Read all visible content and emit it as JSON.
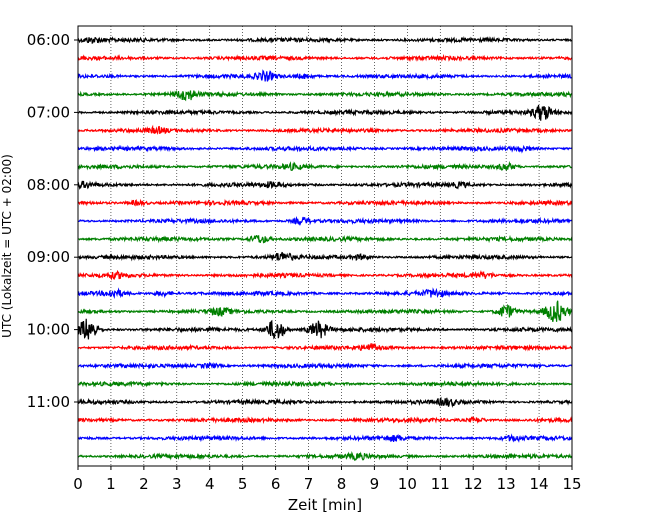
{
  "chart_data": {
    "type": "line",
    "title": "",
    "xlabel": "Zeit  [min]",
    "ylabel": "UTC (Lokalzeit = UTC + 02:00)",
    "xlim": [
      0,
      15
    ],
    "x_ticks": [
      0,
      1,
      2,
      3,
      4,
      5,
      6,
      7,
      8,
      9,
      10,
      11,
      12,
      13,
      14,
      15
    ],
    "y_tick_labels": [
      "06:00",
      "07:00",
      "08:00",
      "09:00",
      "10:00",
      "11:00"
    ],
    "y_tick_trace_index": [
      0,
      4,
      8,
      12,
      16,
      20
    ],
    "grid": "vertical dotted",
    "trace_colors": [
      "#000000",
      "#ff0000",
      "#0000ff",
      "#008000"
    ],
    "traces": [
      {
        "start": "06:00",
        "color": "#000000",
        "events": [
          [
            0.4,
            2
          ]
        ]
      },
      {
        "start": "06:15",
        "color": "#ff0000",
        "events": []
      },
      {
        "start": "06:30",
        "color": "#0000ff",
        "events": [
          [
            5.7,
            4
          ],
          [
            6.9,
            2
          ]
        ]
      },
      {
        "start": "06:45",
        "color": "#008000",
        "events": [
          [
            3.3,
            5
          ]
        ]
      },
      {
        "start": "07:00",
        "color": "#000000",
        "events": [
          [
            14.1,
            7
          ]
        ]
      },
      {
        "start": "07:15",
        "color": "#ff0000",
        "events": [
          [
            2.4,
            2
          ]
        ]
      },
      {
        "start": "07:30",
        "color": "#0000ff",
        "events": [
          [
            13.5,
            2
          ]
        ]
      },
      {
        "start": "07:45",
        "color": "#008000",
        "events": [
          [
            6.5,
            2
          ],
          [
            13.0,
            3
          ]
        ]
      },
      {
        "start": "08:00",
        "color": "#000000",
        "events": [
          [
            0.2,
            2
          ],
          [
            5.9,
            2
          ],
          [
            11.6,
            2
          ]
        ]
      },
      {
        "start": "08:15",
        "color": "#ff0000",
        "events": [
          [
            1.8,
            2
          ]
        ]
      },
      {
        "start": "08:30",
        "color": "#0000ff",
        "events": [
          [
            6.8,
            3
          ]
        ]
      },
      {
        "start": "08:45",
        "color": "#008000",
        "events": [
          [
            5.5,
            4
          ]
        ]
      },
      {
        "start": "09:00",
        "color": "#000000",
        "events": [
          [
            6.2,
            4
          ],
          [
            8.6,
            2
          ]
        ]
      },
      {
        "start": "09:15",
        "color": "#ff0000",
        "events": [
          [
            1.2,
            2
          ],
          [
            12.3,
            2
          ]
        ]
      },
      {
        "start": "09:30",
        "color": "#0000ff",
        "events": [
          [
            1.1,
            3
          ],
          [
            2.6,
            2
          ],
          [
            10.8,
            3
          ]
        ]
      },
      {
        "start": "09:45",
        "color": "#008000",
        "events": [
          [
            4.3,
            3
          ],
          [
            13.0,
            6
          ],
          [
            14.5,
            10
          ]
        ]
      },
      {
        "start": "10:00",
        "color": "#000000",
        "events": [
          [
            0.3,
            11
          ],
          [
            6.0,
            10
          ],
          [
            7.3,
            8
          ]
        ]
      },
      {
        "start": "10:15",
        "color": "#ff0000",
        "events": [
          [
            8.9,
            3
          ]
        ]
      },
      {
        "start": "10:30",
        "color": "#0000ff",
        "events": [
          [
            4.0,
            2
          ]
        ]
      },
      {
        "start": "10:45",
        "color": "#008000",
        "events": []
      },
      {
        "start": "11:00",
        "color": "#000000",
        "events": [
          [
            11.2,
            3
          ]
        ]
      },
      {
        "start": "11:15",
        "color": "#ff0000",
        "events": [
          [
            12.1,
            2
          ]
        ]
      },
      {
        "start": "11:30",
        "color": "#0000ff",
        "events": [
          [
            9.6,
            2
          ],
          [
            13.2,
            2
          ]
        ]
      },
      {
        "start": "11:45",
        "color": "#008000",
        "events": [
          [
            8.5,
            2
          ]
        ]
      }
    ]
  }
}
